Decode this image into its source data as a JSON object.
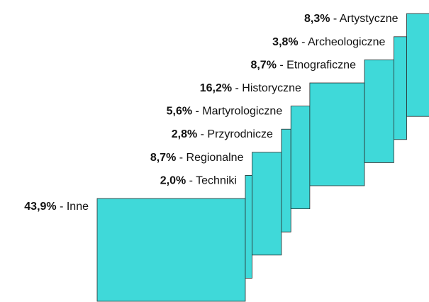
{
  "chart_data": {
    "type": "staircase",
    "categories": [
      "Inne",
      "Techniki",
      "Regionalne",
      "Przyrodnicze",
      "Martyrologiczne",
      "Historyczne",
      "Etnograficzne",
      "Archeologiczne",
      "Artystyczne"
    ],
    "values": [
      43.9,
      2.0,
      8.7,
      2.8,
      5.6,
      16.2,
      8.7,
      3.8,
      8.3
    ],
    "value_labels": [
      "43,9%",
      "2,0%",
      "8,7%",
      "2,8%",
      "5,6%",
      "16,2%",
      "8,7%",
      "3,8%",
      "8,3%"
    ],
    "label_separator": " - ",
    "color": "#3fd9d9"
  }
}
